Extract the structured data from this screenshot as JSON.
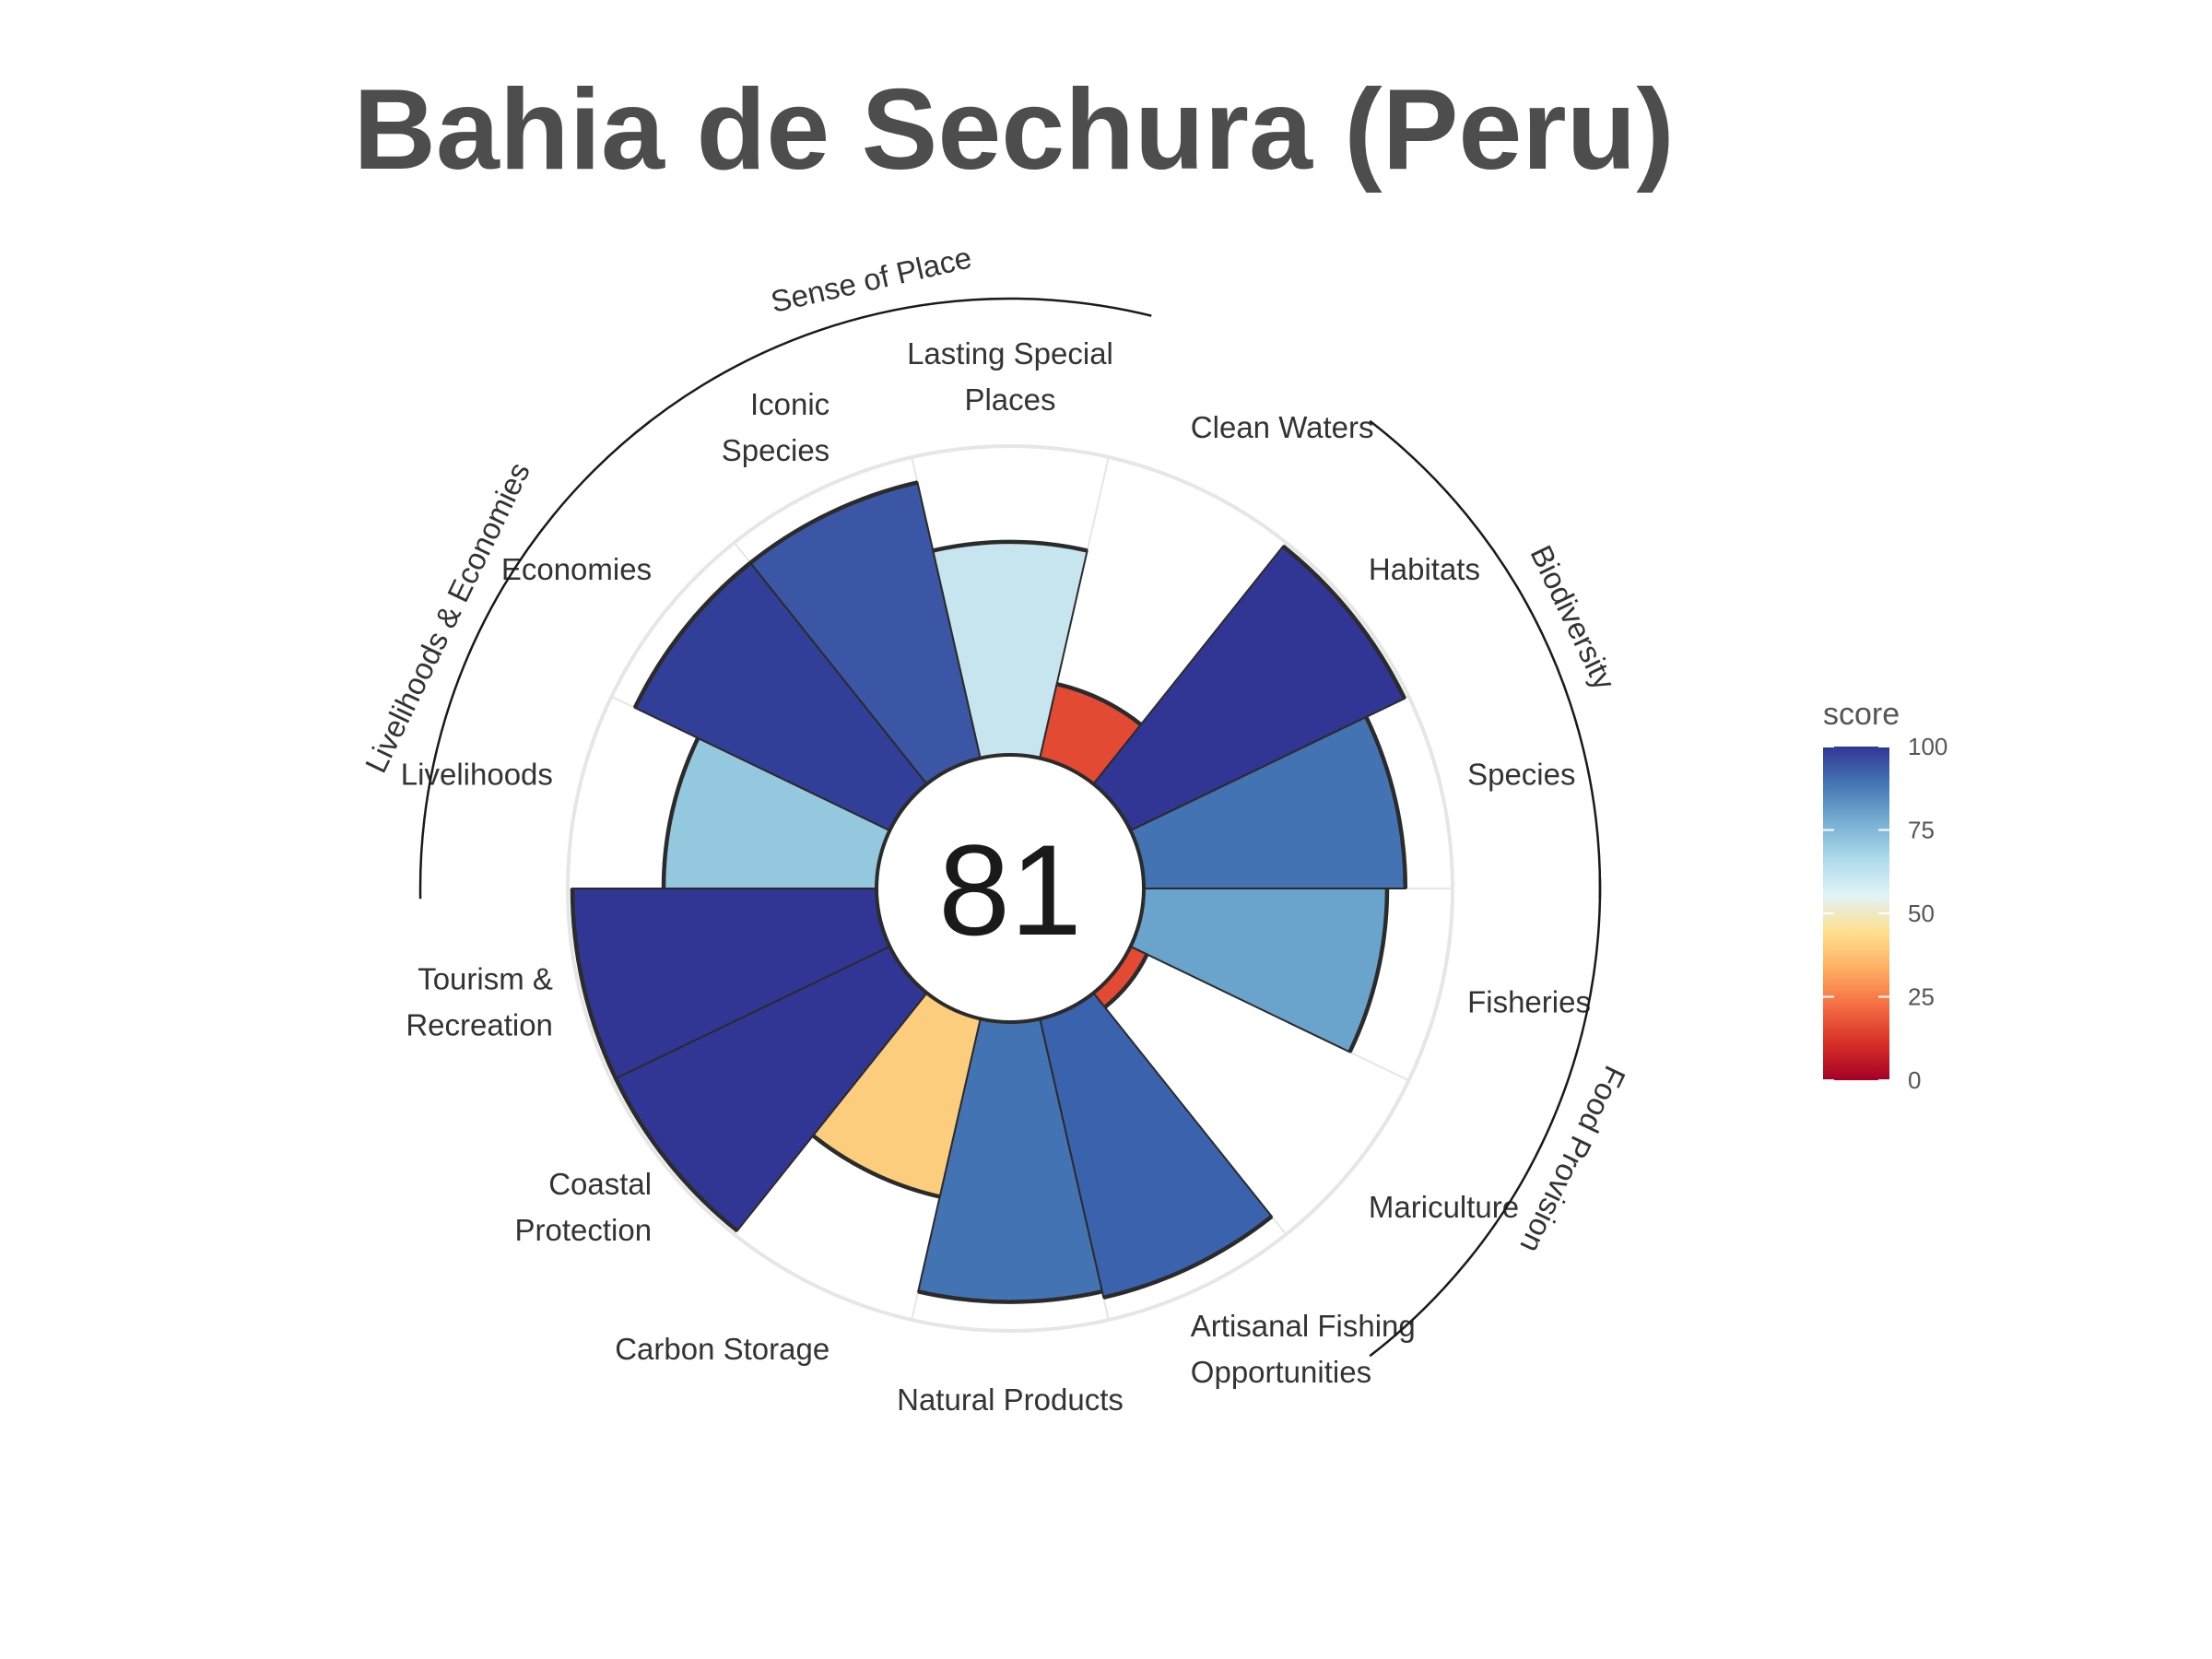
{
  "title": "Bahia de Sechura (Peru)",
  "chart_data": {
    "type": "bar",
    "subtype": "polar-flower",
    "title": "Bahia de Sechura (Peru)",
    "center_score": "81",
    "ylim": [
      0,
      100
    ],
    "petals": [
      {
        "name": "Fisheries",
        "label_lines": [
          "Fisheries"
        ],
        "value": 80,
        "color": "#6aa3cb"
      },
      {
        "name": "Mariculture",
        "label_lines": [
          "Mariculture"
        ],
        "value": 6,
        "color": "#e34a33"
      },
      {
        "name": "Artisanal Fishing Opportunities",
        "label_lines": [
          "Artisanal Fishing",
          "Opportunities"
        ],
        "value": 94,
        "color": "#3b62ad"
      },
      {
        "name": "Natural Products",
        "label_lines": [
          "Natural Products"
        ],
        "value": 92,
        "color": "#4473b4"
      },
      {
        "name": "Carbon Storage",
        "label_lines": [
          "Carbon Storage"
        ],
        "value": 60,
        "color": "#fdcd7e"
      },
      {
        "name": "Coastal Protection",
        "label_lines": [
          "Coastal",
          "Protection"
        ],
        "value": 100,
        "color": "#313695"
      },
      {
        "name": "Tourism & Recreation",
        "label_lines": [
          "Tourism &",
          "Recreation"
        ],
        "value": 100,
        "color": "#313695"
      },
      {
        "name": "Livelihoods",
        "label_lines": [
          "Livelihoods"
        ],
        "value": 70,
        "color": "#94c8df"
      },
      {
        "name": "Economies",
        "label_lines": [
          "Economies"
        ],
        "value": 93,
        "color": "#323f98"
      },
      {
        "name": "Iconic Species",
        "label_lines": [
          "Iconic",
          "Species"
        ],
        "value": 93,
        "color": "#3b56a5"
      },
      {
        "name": "Lasting Special Places",
        "label_lines": [
          "Lasting Special",
          "Places"
        ],
        "value": 70,
        "color": "#c6e5ef"
      },
      {
        "name": "Clean Waters",
        "label_lines": [
          "Clean Waters"
        ],
        "value": 25,
        "color": "#e34a33"
      },
      {
        "name": "Habitats",
        "label_lines": [
          "Habitats"
        ],
        "value": 100,
        "color": "#313695"
      },
      {
        "name": "Species",
        "label_lines": [
          "Species"
        ],
        "value": 86,
        "color": "#4473b4"
      }
    ],
    "groups": [
      {
        "name": "Food Provision",
        "label": "Food Provision"
      },
      {
        "name": "Biodiversity",
        "label": "Biodiversity"
      },
      {
        "name": "Sense of Place",
        "label": "Sense of Place"
      },
      {
        "name": "Livelihoods & Economies",
        "label": "Livelihoods & Economies"
      }
    ],
    "legend": {
      "title": "score",
      "ticks": [
        "100",
        "75",
        "50",
        "25",
        "0"
      ],
      "colors": [
        "#a50026",
        "#d73027",
        "#f46d43",
        "#fdae61",
        "#fee090",
        "#e0f3f8",
        "#abd9e9",
        "#74add1",
        "#4575b4",
        "#313695"
      ]
    }
  }
}
